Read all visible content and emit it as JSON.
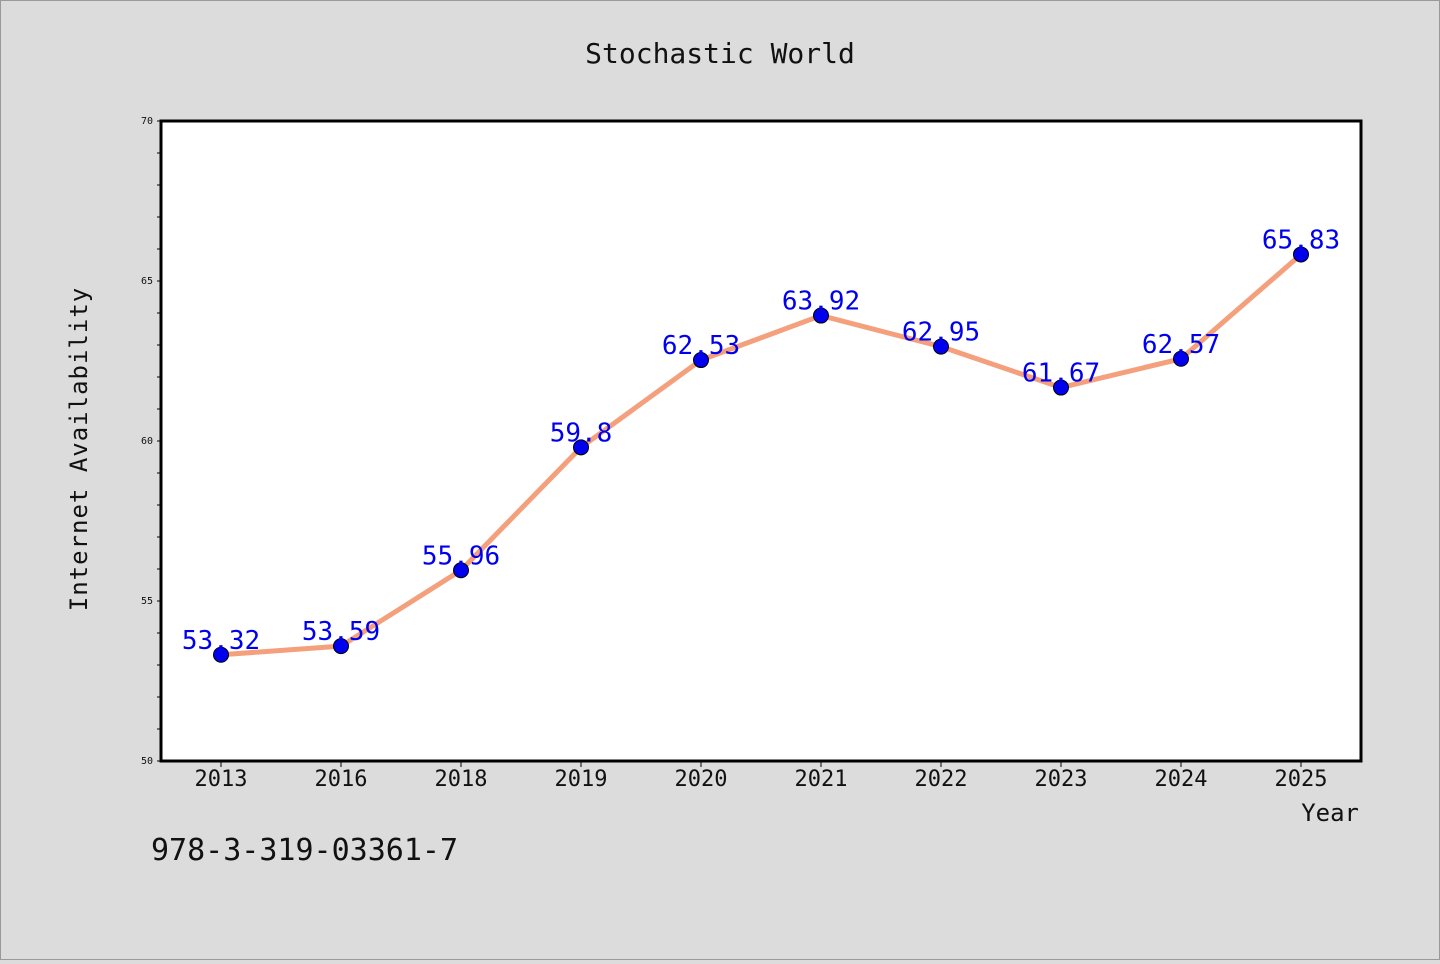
{
  "chart_data": {
    "type": "line",
    "title": "Stochastic World",
    "xlabel": "Year",
    "ylabel": "Internet Availability",
    "categories": [
      "2013",
      "2016",
      "2018",
      "2019",
      "2020",
      "2021",
      "2022",
      "2023",
      "2024",
      "2025"
    ],
    "values": [
      53.32,
      53.59,
      55.96,
      59.8,
      62.53,
      63.92,
      62.95,
      61.67,
      62.57,
      65.83
    ],
    "data_labels": [
      "53.32",
      "53.59",
      "55.96",
      "59.8",
      "62.53",
      "63.92",
      "62.95",
      "61.67",
      "62.57",
      "65.83"
    ],
    "ylim": [
      50,
      70
    ],
    "y_major_ticks": [
      50,
      55,
      60,
      65,
      70
    ],
    "y_minor_step": 1,
    "grid": false,
    "legend": "none",
    "colors": {
      "line": "#f4a07c",
      "marker": "#0000ee",
      "data_label": "#0000ee",
      "plot_background": "#ffffff",
      "figure_background": "#dcdcdc"
    }
  },
  "footer": {
    "identifier": "978-3-319-03361-7"
  }
}
